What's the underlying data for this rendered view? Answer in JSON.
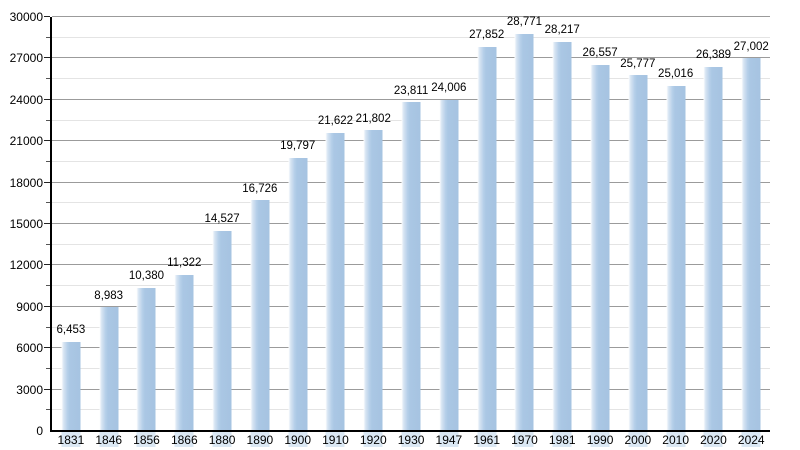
{
  "chart_data": {
    "type": "bar",
    "title": "",
    "xlabel": "",
    "ylabel": "",
    "categories": [
      "1831",
      "1846",
      "1856",
      "1866",
      "1880",
      "1890",
      "1900",
      "1910",
      "1920",
      "1930",
      "1947",
      "1961",
      "1970",
      "1981",
      "1990",
      "2000",
      "2010",
      "2020",
      "2024"
    ],
    "values": [
      6453,
      8983,
      10380,
      11322,
      14527,
      16726,
      19797,
      21622,
      21802,
      23811,
      24006,
      27852,
      28771,
      28217,
      26557,
      25777,
      25016,
      26389,
      27002
    ],
    "value_labels": [
      "6,453",
      "8,983",
      "10,380",
      "11,322",
      "14,527",
      "16,726",
      "19,797",
      "21,622",
      "21,802",
      "23,811",
      "24,006",
      "27,852",
      "28,771",
      "28,217",
      "26,557",
      "25,777",
      "25,016",
      "26,389",
      "27,002"
    ],
    "ylim": [
      0,
      30000
    ],
    "y_major_step": 3000,
    "y_minor_step": 1500,
    "y_tick_labels": [
      "0",
      "3000",
      "6000",
      "9000",
      "12000",
      "15000",
      "18000",
      "21000",
      "24000",
      "27000",
      "30000"
    ],
    "grid": "on",
    "legend": "none",
    "colors": {
      "bar_fill": "#aac7e4",
      "bar_highlight": "#ffffff",
      "major_grid": "#9b9b9b",
      "minor_grid": "#e4e4e4",
      "axis": "#000000",
      "text": "#000000",
      "background": "#ffffff"
    }
  }
}
